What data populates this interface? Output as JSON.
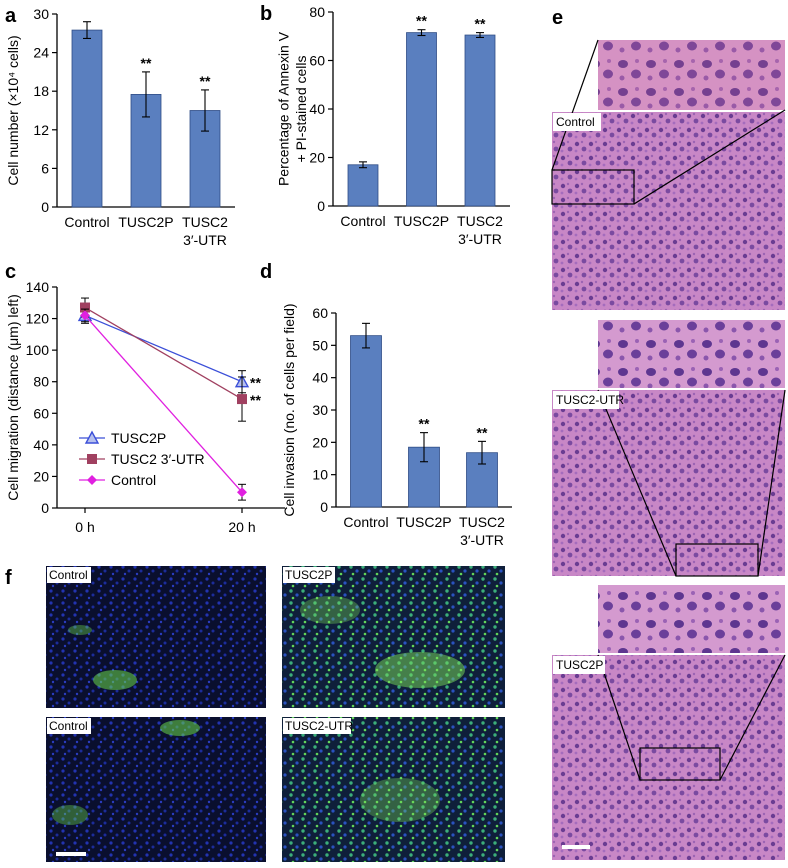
{
  "panels": {
    "a": {
      "letter": "a"
    },
    "b": {
      "letter": "b"
    },
    "c": {
      "letter": "c"
    },
    "d": {
      "letter": "d"
    },
    "e": {
      "letter": "e"
    },
    "f": {
      "letter": "f"
    }
  },
  "chart_data": [
    {
      "id": "a",
      "type": "bar",
      "categories": [
        "Control",
        "TUSC2P",
        "TUSC2 3′-UTR"
      ],
      "category_lines": [
        [
          "Control"
        ],
        [
          "TUSC2P"
        ],
        [
          "TUSC2",
          "3′-UTR"
        ]
      ],
      "values": [
        27.5,
        17.5,
        15.0
      ],
      "errors": [
        1.3,
        3.5,
        3.2
      ],
      "significance": [
        "",
        "**",
        "**"
      ],
      "ylabel": "Cell number (×10⁴ cells)",
      "ylim": [
        0,
        30
      ],
      "yticks": [
        0,
        6,
        12,
        18,
        24,
        30
      ],
      "bar_color": "#5a7fbf"
    },
    {
      "id": "b",
      "type": "bar",
      "categories": [
        "Control",
        "TUSC2P",
        "TUSC2 3′-UTR"
      ],
      "category_lines": [
        [
          "Control"
        ],
        [
          "TUSC2P"
        ],
        [
          "TUSC2",
          "3′-UTR"
        ]
      ],
      "values": [
        17.0,
        71.5,
        70.5
      ],
      "errors": [
        1.2,
        1.2,
        1.0
      ],
      "significance": [
        "",
        "**",
        "**"
      ],
      "ylabel_lines": [
        "Percentage of Annexin V",
        "+ PI-stained cells"
      ],
      "ylim": [
        0,
        80
      ],
      "yticks": [
        0,
        20,
        40,
        60,
        80
      ],
      "bar_color": "#5a7fbf"
    },
    {
      "id": "c",
      "type": "line",
      "x": [
        "0 h",
        "20 h"
      ],
      "ylabel": "Cell migration (distance (μm) left)",
      "ylim": [
        0,
        140
      ],
      "yticks": [
        0,
        20,
        40,
        60,
        80,
        100,
        120,
        140
      ],
      "legend_position": "bottom-left",
      "series": [
        {
          "name": "TUSC2P",
          "values": [
            122,
            80
          ],
          "errors": [
            5,
            7
          ],
          "color": "#3b4fd8",
          "marker": "triangle",
          "significance": "**"
        },
        {
          "name": "TUSC2 3′-UTR",
          "values": [
            127,
            69
          ],
          "errors": [
            6,
            14
          ],
          "color": "#a04060",
          "marker": "square",
          "significance": "**"
        },
        {
          "name": "Control",
          "values": [
            122,
            10
          ],
          "errors": [
            4,
            5
          ],
          "color": "#e020e0",
          "marker": "diamond",
          "significance": ""
        }
      ]
    },
    {
      "id": "d",
      "type": "bar",
      "categories": [
        "Control",
        "TUSC2P",
        "TUSC2 3′-UTR"
      ],
      "category_lines": [
        [
          "Control"
        ],
        [
          "TUSC2P"
        ],
        [
          "TUSC2",
          "3′-UTR"
        ]
      ],
      "values": [
        53,
        18.5,
        16.8
      ],
      "errors": [
        3.8,
        4.5,
        3.5
      ],
      "significance": [
        "",
        "**",
        "**"
      ],
      "ylabel": "Cell invasion (no. of cells per field)",
      "ylim": [
        0,
        60
      ],
      "yticks": [
        0,
        10,
        20,
        30,
        40,
        50,
        60
      ],
      "bar_color": "#5a7fbf"
    }
  ],
  "images": {
    "e_labels": [
      "Control",
      "TUSC2-UTR",
      "TUSC2P"
    ],
    "f_labels": [
      "Control",
      "TUSC2P",
      "Control",
      "TUSC2-UTR"
    ]
  }
}
